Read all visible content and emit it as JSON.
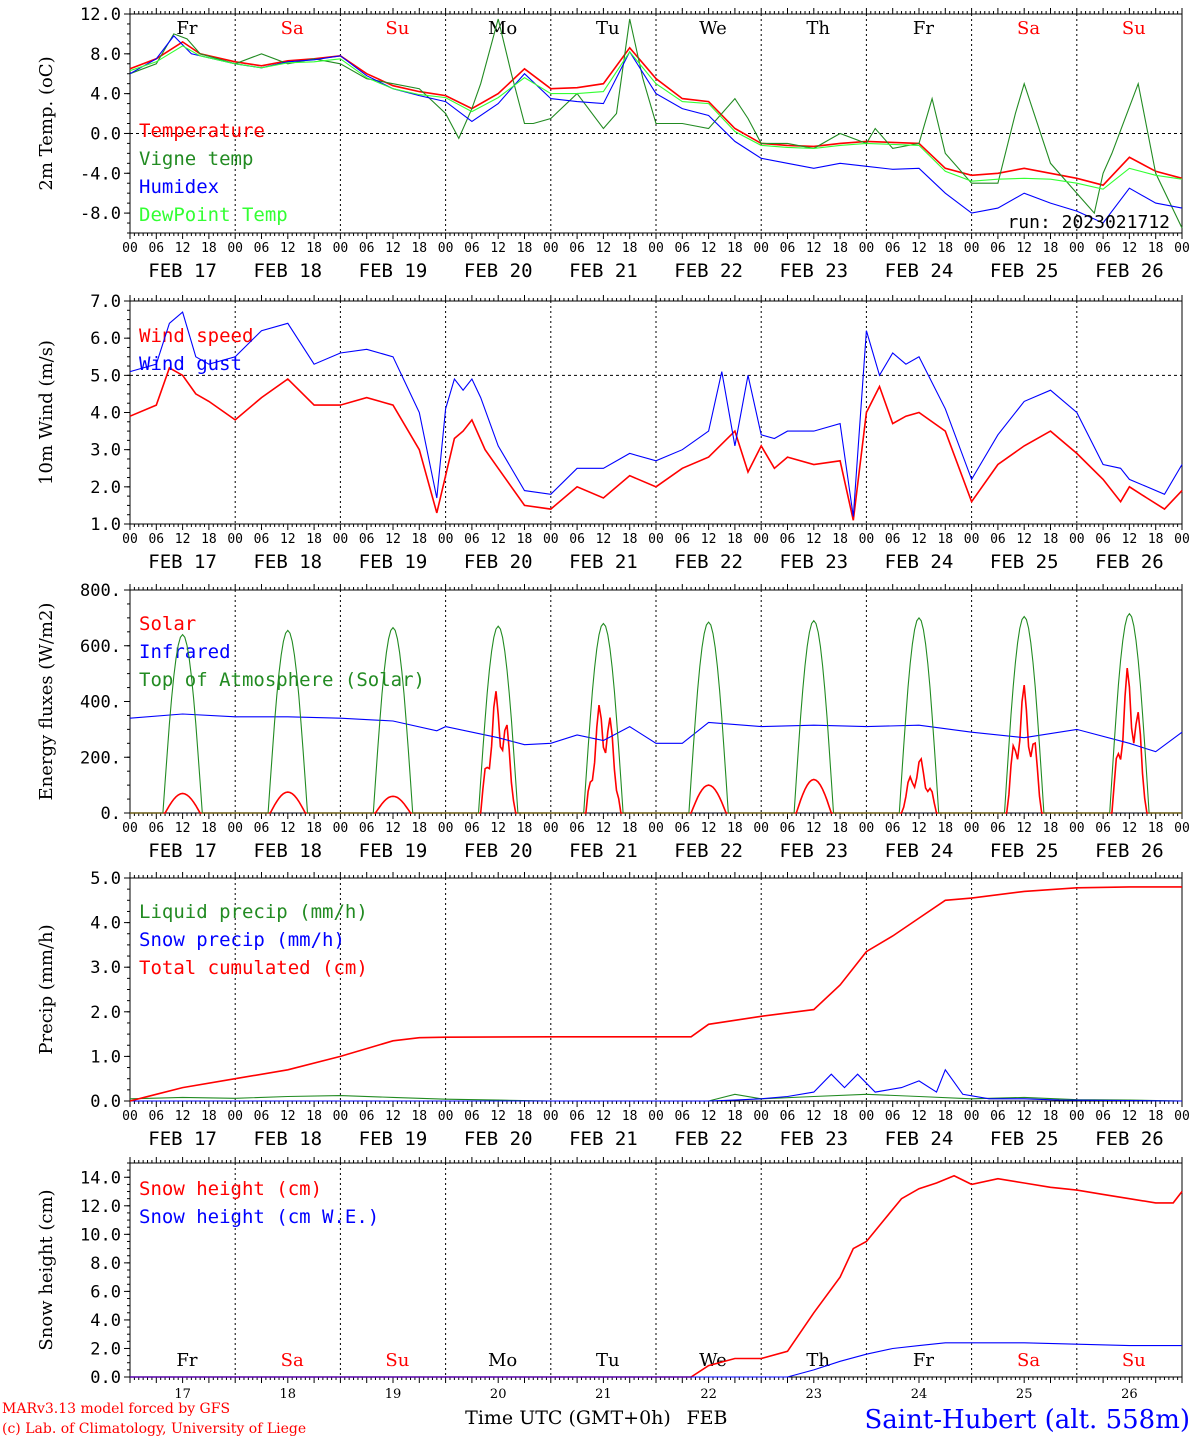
{
  "colors": {
    "red": "#ff0000",
    "green": "#228b22",
    "blue": "#0000ff",
    "lime": "#33ff33",
    "black": "#000000",
    "weekend": "#ff0000"
  },
  "days": {
    "dates": [
      "FEB 17",
      "FEB 18",
      "FEB 19",
      "FEB 20",
      "FEB 21",
      "FEB 22",
      "FEB 23",
      "FEB 24",
      "FEB 25",
      "FEB 26"
    ],
    "weekdays": [
      "Fr",
      "Sa",
      "Su",
      "Mo",
      "Tu",
      "We",
      "Th",
      "Fr",
      "Sa",
      "Su"
    ],
    "weekend": [
      false,
      true,
      true,
      false,
      false,
      false,
      false,
      false,
      true,
      true
    ],
    "numbers": [
      "17",
      "18",
      "19",
      "20",
      "21",
      "22",
      "23",
      "24",
      "25",
      "26"
    ],
    "hour_ticks": [
      "00",
      "06",
      "12",
      "18"
    ],
    "end_tick": "00"
  },
  "footer": {
    "model": "MARv3.13 model forced by GFS",
    "lab": "(c) Lab. of Climatology, University of Liege",
    "xlabel": "Time UTC (GMT+0h)",
    "month": "FEB",
    "station": "Saint-Hubert (alt. 558m)"
  },
  "chart_data": [
    {
      "type": "line",
      "ylabel": "2m Temp. (oC)",
      "ylim": [
        -10,
        12
      ],
      "yticks": [
        "12.0",
        "8.0",
        "4.0",
        "0.0",
        "-4.0",
        "-8.0"
      ],
      "ytick_values": [
        12,
        8,
        4,
        0,
        -4,
        -8
      ],
      "hline": 0,
      "x_unit": "hours since FEB 17 00 UTC",
      "annotation": "run: 2023021712",
      "series": [
        {
          "name": "Temperature",
          "color": "#ff0000",
          "x": [
            0,
            6,
            12,
            16,
            24,
            30,
            36,
            42,
            48,
            54,
            60,
            66,
            72,
            78,
            84,
            90,
            96,
            102,
            108,
            114,
            120,
            126,
            132,
            138,
            144,
            150,
            156,
            162,
            168,
            174,
            180,
            186,
            192,
            198,
            204,
            210,
            216,
            222,
            228,
            234,
            240
          ],
          "y": [
            6.5,
            7.5,
            9.2,
            8.0,
            7.2,
            6.8,
            7.3,
            7.5,
            7.8,
            6.0,
            4.8,
            4.2,
            3.8,
            2.5,
            4.0,
            6.5,
            4.5,
            4.6,
            5.0,
            8.6,
            5.5,
            3.5,
            3.2,
            0.5,
            -1.0,
            -1.2,
            -1.3,
            -1.0,
            -0.8,
            -0.9,
            -1.0,
            -3.5,
            -4.2,
            -4.0,
            -3.5,
            -4.0,
            -4.5,
            -5.2,
            -2.4,
            -3.8,
            -4.5
          ]
        },
        {
          "name": "Vigne temp",
          "color": "#228b22",
          "x": [
            0,
            6,
            10,
            13,
            16,
            24,
            30,
            36,
            42,
            48,
            54,
            60,
            66,
            72,
            75,
            78,
            80,
            84,
            87,
            90,
            92,
            96,
            102,
            108,
            111,
            114,
            117,
            120,
            126,
            132,
            138,
            141,
            144,
            150,
            156,
            162,
            168,
            170,
            174,
            180,
            183,
            186,
            192,
            198,
            202,
            204,
            210,
            216,
            220,
            222,
            224,
            230,
            234,
            240
          ],
          "y": [
            6.0,
            7.0,
            10.0,
            9.5,
            8.0,
            7.0,
            8.0,
            7.0,
            7.5,
            7.0,
            5.5,
            5.0,
            4.5,
            2.0,
            -0.5,
            2.5,
            5.0,
            11.5,
            6.0,
            1.0,
            1.0,
            1.5,
            4.0,
            0.5,
            2.0,
            11.5,
            5.5,
            1.0,
            1.0,
            0.5,
            3.5,
            1.5,
            -1.0,
            -1.0,
            -1.5,
            0.0,
            -1.0,
            0.5,
            -1.5,
            -1.0,
            3.5,
            -2.0,
            -5.0,
            -5.0,
            2.0,
            5.0,
            -3.0,
            -6.0,
            -8.0,
            -4.0,
            -2.0,
            5.0,
            -4.0,
            -9.5
          ]
        },
        {
          "name": "Humidex",
          "color": "#0000ff",
          "x": [
            0,
            6,
            10,
            14,
            24,
            30,
            36,
            42,
            48,
            54,
            60,
            66,
            72,
            78,
            84,
            90,
            96,
            102,
            108,
            114,
            120,
            126,
            132,
            138,
            144,
            150,
            156,
            162,
            168,
            174,
            180,
            186,
            192,
            198,
            204,
            210,
            216,
            222,
            228,
            234,
            240
          ],
          "y": [
            6.0,
            7.5,
            9.8,
            8.0,
            7.0,
            6.6,
            7.2,
            7.4,
            7.8,
            5.8,
            4.5,
            3.8,
            3.2,
            1.2,
            3.0,
            6.0,
            3.5,
            3.2,
            3.0,
            8.2,
            4.0,
            2.5,
            1.8,
            -0.8,
            -2.5,
            -3.0,
            -3.5,
            -3.0,
            -3.3,
            -3.6,
            -3.5,
            -6.0,
            -8.0,
            -7.5,
            -6.0,
            -7.0,
            -7.8,
            -9.0,
            -5.5,
            -7.0,
            -7.5
          ]
        },
        {
          "name": "DewPoint Temp",
          "color": "#33ff33",
          "x": [
            0,
            6,
            12,
            16,
            24,
            30,
            36,
            42,
            48,
            54,
            60,
            66,
            72,
            78,
            84,
            90,
            96,
            102,
            108,
            114,
            120,
            126,
            132,
            138,
            144,
            150,
            156,
            162,
            168,
            174,
            180,
            186,
            192,
            198,
            204,
            210,
            216,
            222,
            228,
            234,
            240
          ],
          "y": [
            6.3,
            7.2,
            8.8,
            7.8,
            7.0,
            6.6,
            7.1,
            7.2,
            7.5,
            5.6,
            4.5,
            3.9,
            3.6,
            2.2,
            3.6,
            5.6,
            4.0,
            4.0,
            4.2,
            8.2,
            5.0,
            3.2,
            3.0,
            0.2,
            -1.2,
            -1.4,
            -1.5,
            -1.2,
            -1.0,
            -1.1,
            -1.2,
            -3.8,
            -4.8,
            -4.6,
            -4.5,
            -4.6,
            -5.0,
            -5.6,
            -3.5,
            -4.2,
            -4.6
          ]
        }
      ]
    },
    {
      "type": "line",
      "ylabel": "10m Wind (m/s)",
      "ylim": [
        1.0,
        7.0
      ],
      "yticks": [
        "7.0",
        "6.0",
        "5.0",
        "4.0",
        "3.0",
        "2.0",
        "1.0"
      ],
      "ytick_values": [
        7,
        6,
        5,
        4,
        3,
        2,
        1
      ],
      "hline": 5.0,
      "x_unit": "hours since FEB 17 00 UTC",
      "series": [
        {
          "name": "Wind speed",
          "color": "#ff0000",
          "x": [
            0,
            6,
            9,
            12,
            15,
            18,
            24,
            30,
            36,
            42,
            48,
            54,
            60,
            66,
            70,
            74,
            76,
            78,
            81,
            84,
            90,
            96,
            102,
            108,
            114,
            120,
            126,
            132,
            138,
            141,
            144,
            147,
            150,
            156,
            162,
            165,
            168,
            171,
            174,
            177,
            180,
            186,
            192,
            198,
            204,
            210,
            216,
            222,
            226,
            228,
            232,
            236,
            240
          ],
          "y": [
            3.9,
            4.2,
            5.2,
            5.0,
            4.5,
            4.3,
            3.8,
            4.4,
            4.9,
            4.2,
            4.2,
            4.4,
            4.2,
            3.0,
            1.3,
            3.3,
            3.5,
            3.8,
            3.0,
            2.5,
            1.5,
            1.4,
            2.0,
            1.7,
            2.3,
            2.0,
            2.5,
            2.8,
            3.5,
            2.4,
            3.1,
            2.5,
            2.8,
            2.6,
            2.7,
            1.1,
            4.0,
            4.7,
            3.7,
            3.9,
            4.0,
            3.5,
            1.6,
            2.6,
            3.1,
            3.5,
            2.9,
            2.2,
            1.6,
            2.0,
            1.7,
            1.4,
            1.9
          ]
        },
        {
          "name": "Wind gust",
          "color": "#0000ff",
          "x": [
            0,
            6,
            9,
            12,
            15,
            18,
            24,
            30,
            36,
            42,
            48,
            54,
            60,
            66,
            70,
            72,
            74,
            76,
            78,
            80,
            84,
            90,
            96,
            102,
            108,
            114,
            120,
            126,
            132,
            135,
            138,
            141,
            144,
            147,
            150,
            156,
            162,
            165,
            168,
            171,
            174,
            177,
            180,
            186,
            192,
            198,
            204,
            210,
            216,
            222,
            226,
            228,
            232,
            236,
            240
          ],
          "y": [
            5.1,
            5.3,
            6.4,
            6.7,
            5.5,
            5.3,
            5.5,
            6.2,
            6.4,
            5.3,
            5.6,
            5.7,
            5.5,
            4.0,
            1.7,
            4.1,
            4.9,
            4.6,
            4.9,
            4.4,
            3.1,
            1.9,
            1.8,
            2.5,
            2.5,
            2.9,
            2.7,
            3.0,
            3.5,
            5.1,
            3.1,
            5.0,
            3.4,
            3.3,
            3.5,
            3.5,
            3.7,
            1.2,
            6.2,
            5.0,
            5.6,
            5.3,
            5.5,
            4.1,
            2.2,
            3.4,
            4.3,
            4.6,
            4.0,
            2.6,
            2.5,
            2.2,
            2.0,
            1.8,
            2.6
          ]
        }
      ]
    },
    {
      "type": "line",
      "ylabel": "Energy fluxes (W/m2)",
      "ylim": [
        0,
        800
      ],
      "yticks": [
        "800.",
        "600.",
        "400.",
        "200.",
        "0."
      ],
      "ytick_values": [
        800,
        600,
        400,
        200,
        0
      ],
      "x_unit": "hours since FEB 17 00 UTC",
      "series": [
        {
          "name": "Solar",
          "color": "#ff0000",
          "peaks": [
            70,
            75,
            60,
            450,
            420,
            100,
            120,
            200,
            460,
            530
          ]
        },
        {
          "name": "Infrared",
          "color": "#0000ff",
          "x": [
            0,
            12,
            24,
            36,
            48,
            60,
            70,
            72,
            84,
            90,
            96,
            102,
            108,
            114,
            120,
            126,
            132,
            144,
            156,
            168,
            180,
            192,
            204,
            216,
            228,
            234,
            240
          ],
          "y": [
            340,
            355,
            345,
            345,
            340,
            330,
            295,
            310,
            270,
            245,
            250,
            280,
            260,
            310,
            250,
            250,
            325,
            310,
            315,
            310,
            315,
            290,
            270,
            300,
            250,
            220,
            290
          ]
        },
        {
          "name": "Top of Atmosphere (Solar)",
          "color": "#228b22",
          "peaks": [
            640,
            655,
            665,
            670,
            680,
            685,
            690,
            700,
            705,
            715
          ]
        }
      ]
    },
    {
      "type": "line",
      "ylabel": "Precip (mm/h)",
      "ylim": [
        0,
        5.0
      ],
      "yticks": [
        "5.0",
        "4.0",
        "3.0",
        "2.0",
        "1.0",
        "0.0"
      ],
      "ytick_values": [
        5,
        4,
        3,
        2,
        1,
        0
      ],
      "x_unit": "hours since FEB 17 00 UTC",
      "series": [
        {
          "name": "Liquid precip (mm/h)",
          "color": "#228b22",
          "x": [
            0,
            12,
            24,
            36,
            48,
            60,
            72,
            84,
            96,
            120,
            132,
            138,
            144,
            156,
            168,
            180,
            192,
            204,
            216,
            228,
            240
          ],
          "y": [
            0.05,
            0.08,
            0.06,
            0.1,
            0.12,
            0.08,
            0.04,
            0.02,
            0.0,
            0.0,
            0.0,
            0.15,
            0.05,
            0.1,
            0.15,
            0.1,
            0.05,
            0.08,
            0.03,
            0.02,
            0.0
          ]
        },
        {
          "name": "Snow precip (mm/h)",
          "color": "#0000ff",
          "x": [
            0,
            132,
            138,
            144,
            150,
            156,
            160,
            163,
            166,
            170,
            176,
            180,
            184,
            186,
            190,
            196,
            204,
            212,
            240
          ],
          "y": [
            0.0,
            0.0,
            0.02,
            0.05,
            0.1,
            0.2,
            0.6,
            0.3,
            0.6,
            0.2,
            0.3,
            0.45,
            0.2,
            0.7,
            0.15,
            0.05,
            0.05,
            0.02,
            0.0
          ]
        },
        {
          "name": "Total cumulated (cm)",
          "color": "#ff0000",
          "x": [
            0,
            6,
            12,
            24,
            36,
            48,
            60,
            66,
            72,
            96,
            120,
            128,
            132,
            144,
            156,
            162,
            168,
            174,
            180,
            186,
            192,
            204,
            216,
            228,
            240
          ],
          "y": [
            0.0,
            0.15,
            0.3,
            0.5,
            0.7,
            1.0,
            1.35,
            1.42,
            1.43,
            1.44,
            1.44,
            1.44,
            1.72,
            1.9,
            2.05,
            2.6,
            3.35,
            3.7,
            4.1,
            4.5,
            4.55,
            4.7,
            4.78,
            4.8,
            4.8
          ]
        }
      ]
    },
    {
      "type": "line",
      "ylabel": "Snow height (cm)",
      "ylim": [
        0,
        15
      ],
      "yticks": [
        "14.0",
        "12.0",
        "10.0",
        "8.0",
        "6.0",
        "4.0",
        "2.0",
        "0.0"
      ],
      "ytick_values": [
        14,
        12,
        10,
        8,
        6,
        4,
        2,
        0
      ],
      "x_unit": "hours since FEB 17 00 UTC",
      "series": [
        {
          "name": "Snow height (cm)",
          "color": "#ff0000",
          "x": [
            0,
            128,
            132,
            138,
            144,
            150,
            156,
            162,
            165,
            168,
            172,
            176,
            180,
            184,
            188,
            192,
            198,
            204,
            210,
            216,
            222,
            228,
            234,
            238,
            240
          ],
          "y": [
            0.0,
            0.0,
            0.8,
            1.3,
            1.3,
            1.8,
            4.5,
            7.0,
            9.0,
            9.5,
            11.0,
            12.5,
            13.2,
            13.6,
            14.1,
            13.5,
            13.9,
            13.6,
            13.3,
            13.1,
            12.8,
            12.5,
            12.2,
            12.2,
            13.0
          ]
        },
        {
          "name": "Snow height (cm W.E.)",
          "color": "#0000ff",
          "x": [
            0,
            150,
            156,
            162,
            168,
            174,
            180,
            186,
            192,
            204,
            216,
            228,
            240
          ],
          "y": [
            0.0,
            0.0,
            0.5,
            1.1,
            1.6,
            2.0,
            2.2,
            2.4,
            2.4,
            2.4,
            2.3,
            2.2,
            2.2
          ]
        }
      ]
    }
  ]
}
